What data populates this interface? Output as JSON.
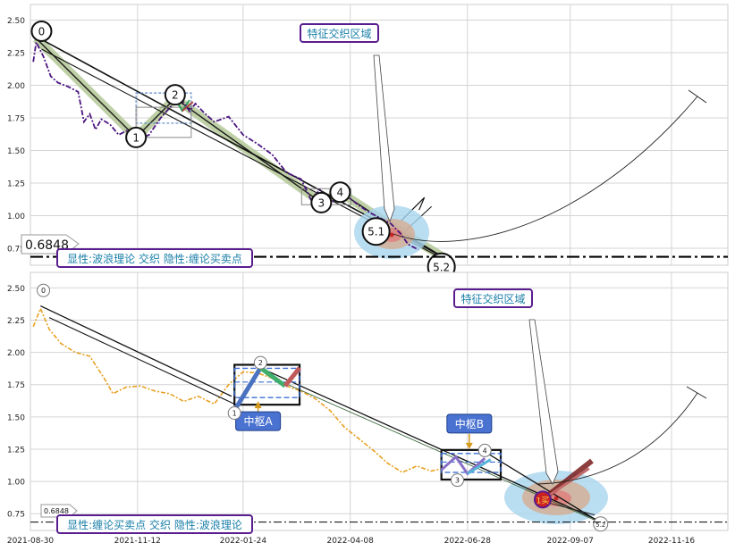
{
  "chart_data": [
    {
      "type": "line",
      "panel": "top",
      "ylim": [
        0.62,
        2.62
      ],
      "yticks": [
        0.75,
        1.0,
        1.25,
        1.5,
        1.75,
        2.0,
        2.25,
        2.5
      ],
      "price_series": [
        [
          "2021-09-01",
          2.18
        ],
        [
          "2021-09-03",
          2.33
        ],
        [
          "2021-09-08",
          2.22
        ],
        [
          "2021-09-13",
          2.07
        ],
        [
          "2021-09-18",
          2.02
        ],
        [
          "2021-09-25",
          1.99
        ],
        [
          "2021-10-02",
          1.95
        ],
        [
          "2021-10-06",
          1.72
        ],
        [
          "2021-10-10",
          1.78
        ],
        [
          "2021-10-14",
          1.66
        ],
        [
          "2021-10-18",
          1.74
        ],
        [
          "2021-10-24",
          1.7
        ],
        [
          "2021-10-30",
          1.62
        ],
        [
          "2021-11-06",
          1.66
        ],
        [
          "2021-11-12",
          1.58
        ],
        [
          "2021-11-20",
          1.62
        ],
        [
          "2021-11-28",
          1.75
        ],
        [
          "2021-12-06",
          1.85
        ],
        [
          "2021-12-12",
          1.9
        ],
        [
          "2021-12-18",
          1.8
        ],
        [
          "2021-12-22",
          1.86
        ],
        [
          "2021-12-28",
          1.79
        ],
        [
          "2022-01-04",
          1.72
        ],
        [
          "2022-01-14",
          1.76
        ],
        [
          "2022-01-24",
          1.62
        ],
        [
          "2022-02-03",
          1.55
        ],
        [
          "2022-02-13",
          1.47
        ],
        [
          "2022-02-23",
          1.33
        ],
        [
          "2022-03-05",
          1.28
        ],
        [
          "2022-03-12",
          1.12
        ],
        [
          "2022-03-18",
          1.2
        ],
        [
          "2022-03-25",
          1.09
        ],
        [
          "2022-04-01",
          1.16
        ],
        [
          "2022-04-08",
          1.13
        ],
        [
          "2022-04-15",
          1.07
        ],
        [
          "2022-04-22",
          1.02
        ],
        [
          "2022-04-29",
          0.98
        ],
        [
          "2022-05-06",
          0.94
        ],
        [
          "2022-05-13",
          0.86
        ],
        [
          "2022-05-18",
          0.78
        ],
        [
          "2022-05-25",
          0.74
        ]
      ],
      "wave_points": [
        {
          "label": "0",
          "date": "2021-09-03",
          "value": 2.36
        },
        {
          "label": "1",
          "date": "2021-11-11",
          "value": 1.6
        },
        {
          "label": "2",
          "date": "2021-12-08",
          "value": 1.9
        },
        {
          "label": "3",
          "date": "2022-03-19",
          "value": 1.1
        },
        {
          "label": "4",
          "date": "2022-04-01",
          "value": 1.18
        },
        {
          "label": "5.1",
          "date": "2022-05-07",
          "value": 0.92
        },
        {
          "label": "5.2",
          "date": "2022-06-10",
          "value": 0.69
        }
      ],
      "hline": {
        "label": "0.6848",
        "value": 0.6848
      },
      "annotation": "特征交织区域",
      "caption": "显性:波浪理论 交织 隐性:缠论买卖点"
    },
    {
      "type": "line",
      "panel": "bottom",
      "ylim": [
        0.62,
        2.62
      ],
      "yticks": [
        0.75,
        1.0,
        1.25,
        1.5,
        1.75,
        2.0,
        2.25,
        2.5
      ],
      "xticks": [
        "2021-08-30",
        "2021-11-12",
        "2022-01-24",
        "2022-04-08",
        "2022-06-28",
        "2022-09-07",
        "2022-11-16"
      ],
      "price_series": [
        [
          "2021-09-01",
          2.2
        ],
        [
          "2021-09-06",
          2.34
        ],
        [
          "2021-09-12",
          2.18
        ],
        [
          "2021-09-20",
          2.07
        ],
        [
          "2021-09-30",
          2.0
        ],
        [
          "2021-10-10",
          1.97
        ],
        [
          "2021-10-20",
          1.8
        ],
        [
          "2021-10-26",
          1.68
        ],
        [
          "2021-11-04",
          1.73
        ],
        [
          "2021-11-14",
          1.74
        ],
        [
          "2021-11-24",
          1.7
        ],
        [
          "2021-12-04",
          1.68
        ],
        [
          "2021-12-14",
          1.62
        ],
        [
          "2021-12-24",
          1.66
        ],
        [
          "2022-01-04",
          1.6
        ],
        [
          "2022-01-14",
          1.75
        ],
        [
          "2022-01-24",
          1.85
        ],
        [
          "2022-02-03",
          1.84
        ],
        [
          "2022-02-13",
          1.8
        ],
        [
          "2022-02-23",
          1.74
        ],
        [
          "2022-03-05",
          1.7
        ],
        [
          "2022-03-15",
          1.64
        ],
        [
          "2022-03-25",
          1.55
        ],
        [
          "2022-04-04",
          1.42
        ],
        [
          "2022-04-14",
          1.33
        ],
        [
          "2022-04-24",
          1.24
        ],
        [
          "2022-05-04",
          1.14
        ],
        [
          "2022-05-14",
          1.07
        ],
        [
          "2022-05-24",
          1.12
        ],
        [
          "2022-06-03",
          1.08
        ],
        [
          "2022-06-10",
          1.1
        ]
      ],
      "wave_points": [
        {
          "label": "0",
          "date": "2021-09-08",
          "value": 2.48
        },
        {
          "label": "1",
          "date": "2022-01-18",
          "value": 1.53
        },
        {
          "label": "2",
          "date": "2022-02-05",
          "value": 1.92
        },
        {
          "label": "3",
          "date": "2022-06-21",
          "value": 1.01
        },
        {
          "label": "4",
          "date": "2022-07-10",
          "value": 1.24
        },
        {
          "label": "5.2",
          "date": "2022-09-28",
          "value": 0.67
        }
      ],
      "zhongshu": [
        {
          "label": "中枢A",
          "start": "2022-01-18",
          "end": "2022-03-04",
          "low": 1.65,
          "high": 1.89
        },
        {
          "label": "中枢B",
          "start": "2022-06-10",
          "end": "2022-07-21",
          "low": 1.07,
          "high": 1.23
        }
      ],
      "buy_point_badge": "1买",
      "hline": {
        "label": "0.6848",
        "value": 0.6848
      },
      "annotation": "特征交织区域",
      "caption": "显性:缠论买卖点 交织 隐性:波浪理论"
    }
  ],
  "colors": {
    "price_top": "#4b1580",
    "price_bottom": "#e8a020",
    "trend_band": "#b4c896",
    "caption_border": "#5a1d8f",
    "caption_text": "#1a7fa8",
    "zhongshu_fill": "#4a72d0",
    "ellipse_blue": "#a8d4ee",
    "ellipse_brown": "#d8a88a"
  }
}
